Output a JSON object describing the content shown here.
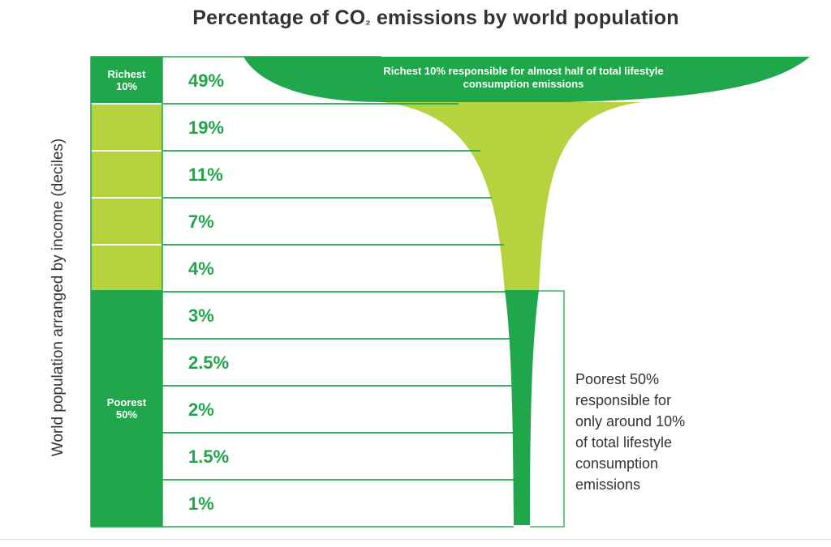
{
  "title": "Percentage of CO₂ emissions by world population",
  "chart_data": {
    "type": "bar",
    "ylabel": "World population arranged by income (deciles)",
    "categories": [
      "Richest 10%",
      "",
      "",
      "",
      "",
      "Poorest 50%",
      "",
      "",
      "",
      ""
    ],
    "values": [
      49,
      19,
      11,
      7,
      4,
      3,
      2.5,
      2,
      1.5,
      1
    ],
    "value_labels": [
      "49%",
      "19%",
      "11%",
      "7%",
      "4%",
      "3%",
      "2.5%",
      "2%",
      "1.5%",
      "1%"
    ],
    "annotations": {
      "richest": "Richest 10% responsible for almost half of total lifestyle consumption emissions",
      "poorest": "Poorest 50% responsible for only around 10% of total lifestyle consumption emissions"
    },
    "colors": {
      "dark_green": "#20a64b",
      "light_green": "#b5d33f",
      "row_line": "#20a64b",
      "text_green": "#21a54b"
    }
  }
}
